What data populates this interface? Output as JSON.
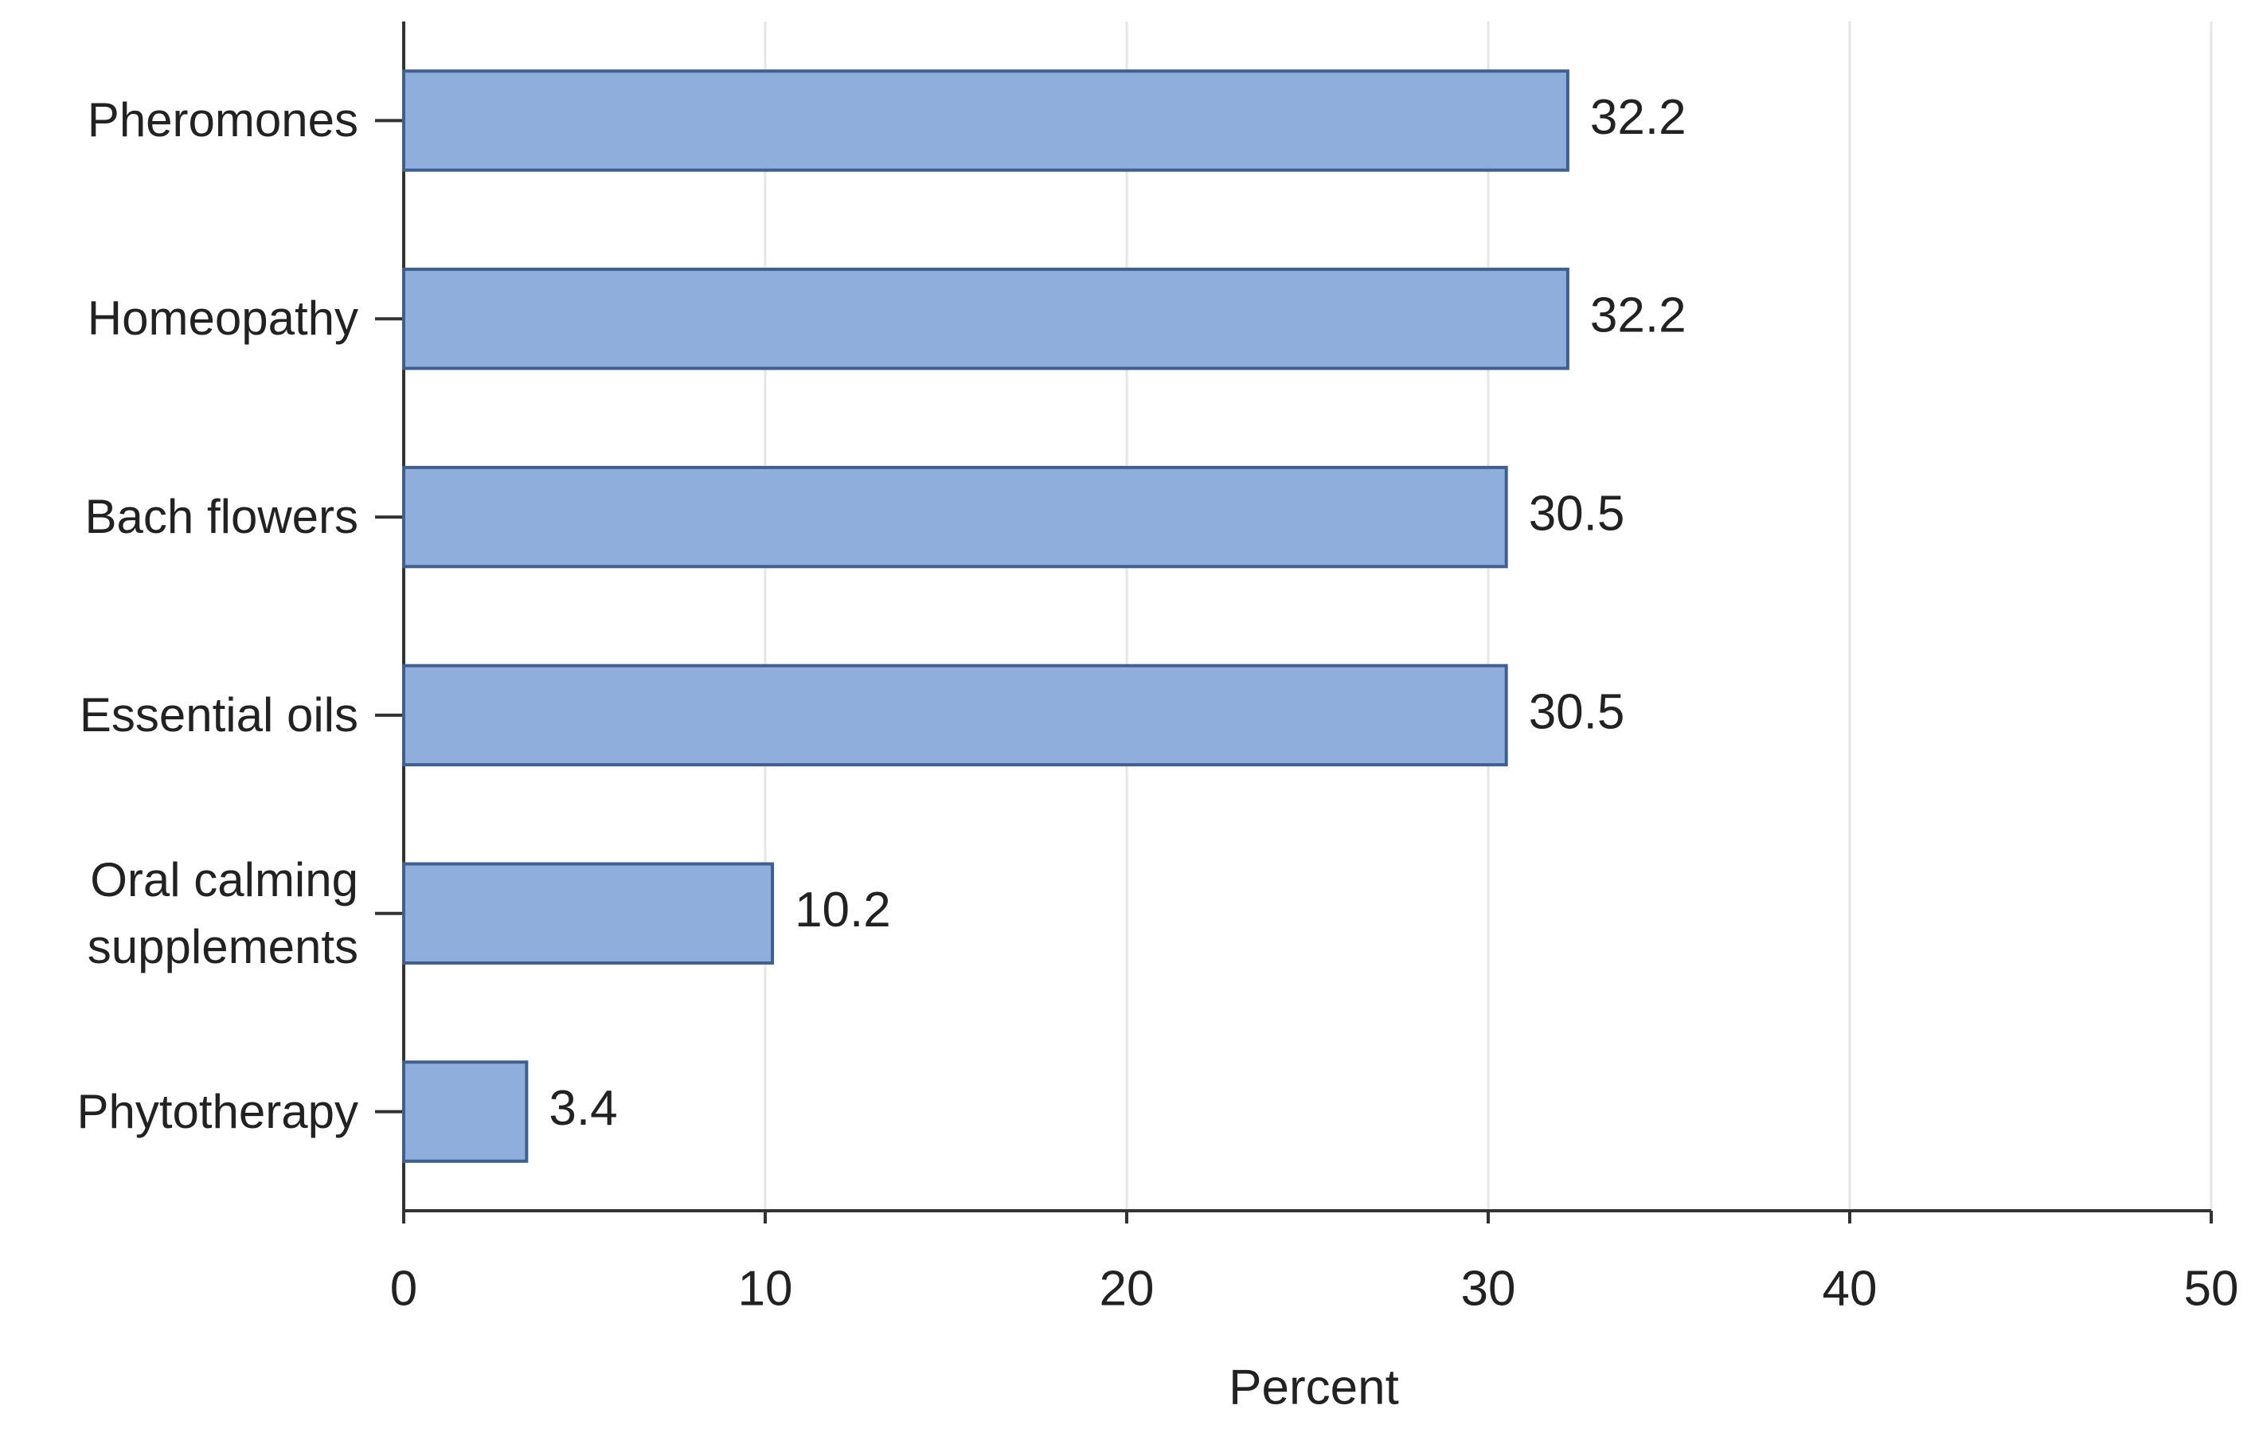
{
  "chart_data": {
    "type": "bar",
    "orientation": "horizontal",
    "categories": [
      "Pheromones",
      "Homeopathy",
      "Bach flowers",
      "Essential oils",
      "Oral calming supplements",
      "Phytotherapy"
    ],
    "values": [
      32.2,
      32.2,
      30.5,
      30.5,
      10.2,
      3.4
    ],
    "color": "#8faedb",
    "xlabel": "Percent",
    "xlim": [
      0,
      50
    ],
    "xticks": [
      0,
      10,
      20,
      30,
      40,
      50
    ],
    "grid": true
  }
}
